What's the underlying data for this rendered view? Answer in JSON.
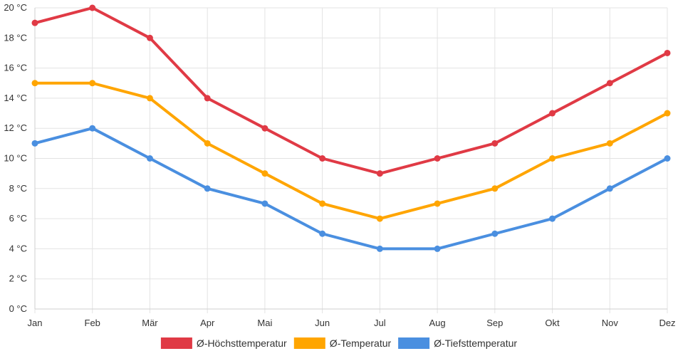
{
  "chart_data": {
    "type": "line",
    "title": "",
    "xlabel": "",
    "ylabel": "",
    "categories": [
      "Jan",
      "Feb",
      "Mär",
      "Apr",
      "Mai",
      "Jun",
      "Jul",
      "Aug",
      "Sep",
      "Okt",
      "Nov",
      "Dez"
    ],
    "y_unit_suffix": " °C",
    "ylim": [
      0,
      20
    ],
    "ytick_step": 2,
    "grid": true,
    "legend_position": "bottom",
    "series": [
      {
        "name": "Ø-Höchsttemperatur",
        "color": "#e03a45",
        "values": [
          19,
          20,
          18,
          14,
          12,
          10,
          9,
          10,
          11,
          13,
          15,
          17
        ]
      },
      {
        "name": "Ø-Temperatur",
        "color": "#ffa500",
        "values": [
          15,
          15,
          14,
          11,
          9,
          7,
          6,
          7,
          8,
          10,
          11,
          13
        ]
      },
      {
        "name": "Ø-Tiefsttemperatur",
        "color": "#4a8fe0",
        "values": [
          11,
          12,
          10,
          8,
          7,
          5,
          4,
          4,
          5,
          6,
          8,
          10
        ]
      }
    ]
  }
}
